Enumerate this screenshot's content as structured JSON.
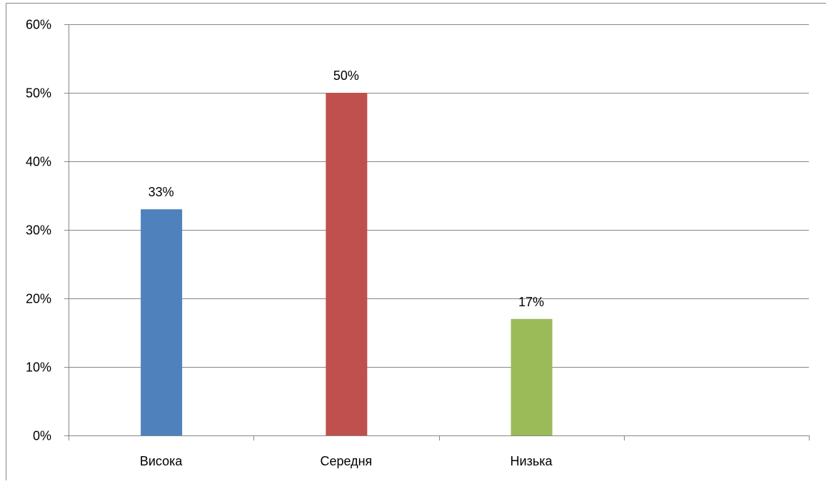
{
  "chart_data": {
    "type": "bar",
    "categories": [
      "Висока",
      "Середня",
      "Низька",
      ""
    ],
    "values": [
      0.33,
      0.5,
      0.17,
      null
    ],
    "data_labels": [
      "33%",
      "50%",
      "17%",
      ""
    ],
    "bar_colors": [
      "#4F81BD",
      "#C0504D",
      "#9BBB59"
    ],
    "title": "",
    "xlabel": "",
    "ylabel": "",
    "ylim": [
      0,
      0.6
    ],
    "yticks": [
      0,
      0.1,
      0.2,
      0.3,
      0.4,
      0.5,
      0.6
    ],
    "ytick_labels": [
      "0%",
      "10%",
      "20%",
      "30%",
      "40%",
      "50%",
      "60%"
    ],
    "grid": true,
    "legend": "none"
  },
  "colors": {
    "gridline": "#868686",
    "frame": "#868686",
    "text": "#000000"
  }
}
